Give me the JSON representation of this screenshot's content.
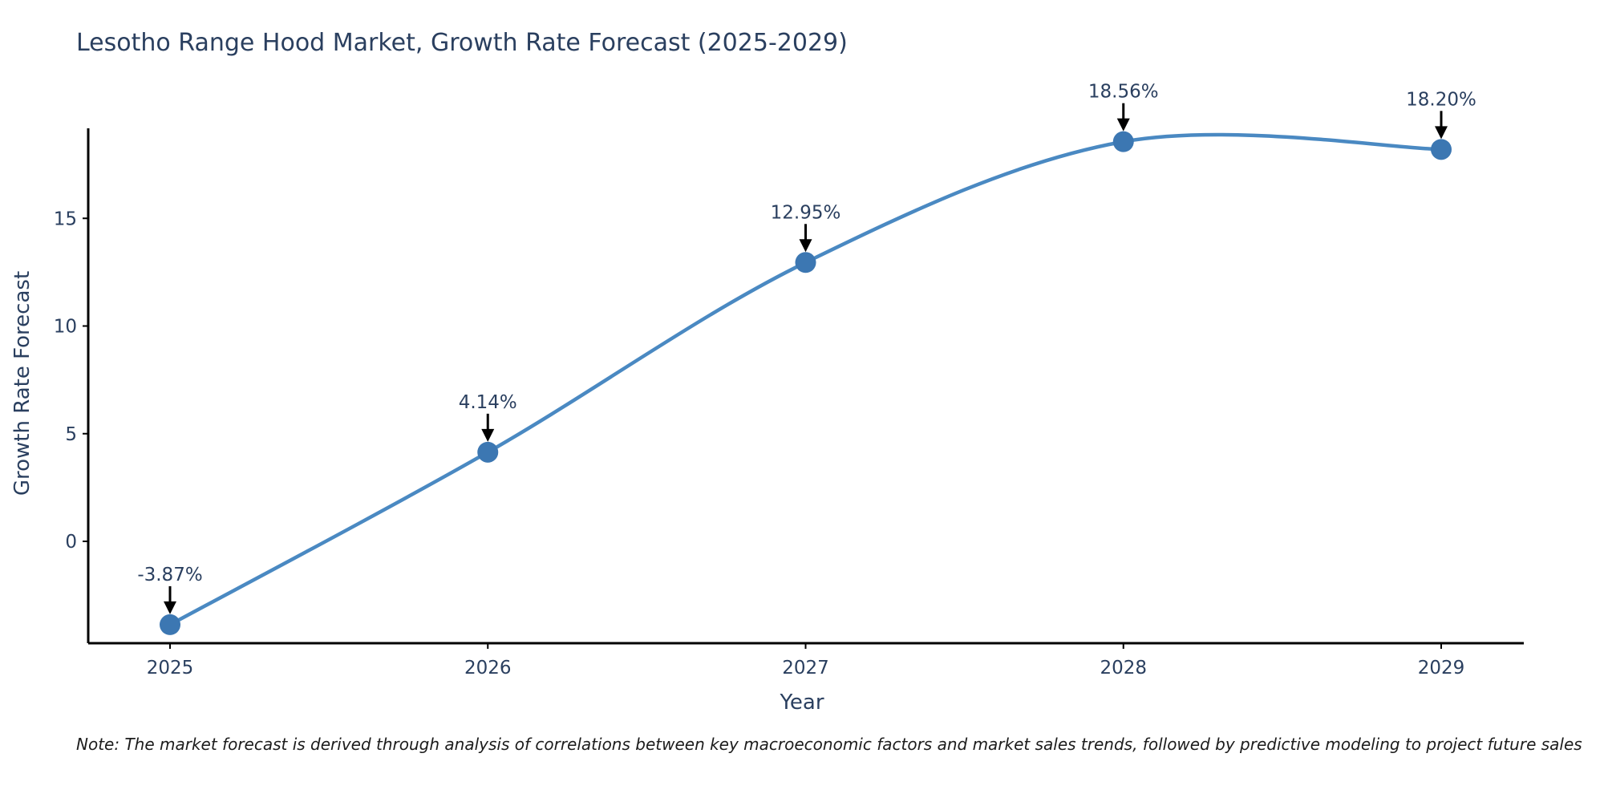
{
  "note": "Note: The market forecast is derived through analysis of correlations between key macroeconomic factors and market sales trends, followed by predictive modeling to project future sales",
  "chart_data": {
    "type": "line",
    "title": "Lesotho Range Hood Market, Growth Rate Forecast (2025-2029)",
    "xlabel": "Year",
    "ylabel": "Growth Rate Forecast",
    "x": [
      2025,
      2026,
      2027,
      2028,
      2029
    ],
    "series": [
      {
        "name": "Growth Rate Forecast",
        "values": [
          -3.87,
          4.14,
          12.95,
          18.56,
          18.2
        ],
        "point_labels": [
          "-3.87%",
          "4.14%",
          "12.95%",
          "18.56%",
          "18.20%"
        ]
      }
    ],
    "xticks": [
      "2025",
      "2026",
      "2027",
      "2028",
      "2029"
    ],
    "yticks": [
      0,
      5,
      10,
      15
    ],
    "ylim": [
      -4.73,
      19.18
    ],
    "grid": false,
    "legend_position": "none",
    "line_shape": "spline",
    "annotations_have_arrows": true,
    "colors": {
      "line": "#4a89c2",
      "marker": "#3c77b2",
      "axis_spine": "#000000",
      "arrow": "#000000",
      "title_text": "#2a3f5f",
      "tick_text": "#2a3f5f",
      "note_text": "#1c1c1c",
      "background": "#ffffff"
    }
  }
}
